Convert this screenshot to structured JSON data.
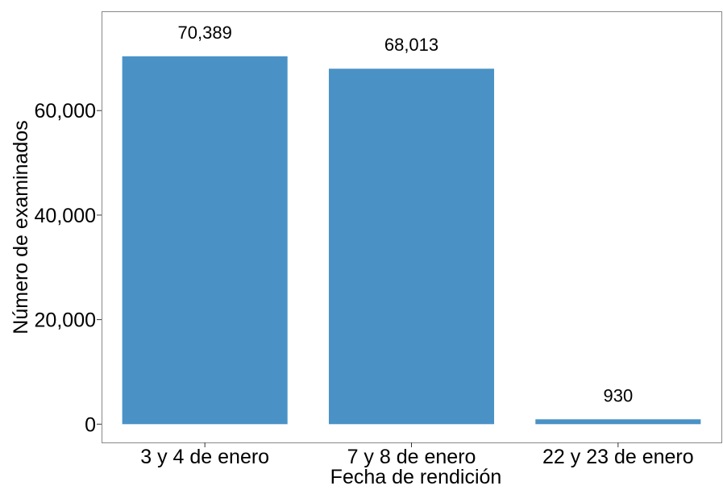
{
  "chart_data": {
    "type": "bar",
    "title": "",
    "xlabel": "Fecha de rendición",
    "ylabel": "Número de examinados",
    "categories": [
      "3 y 4 de enero",
      "7 y 8 de enero",
      "22 y 23 de enero"
    ],
    "values": [
      70389,
      68013,
      930
    ],
    "data_labels": [
      "70,389",
      "68,013",
      "930"
    ],
    "yticks": [
      0,
      20000,
      40000,
      60000
    ],
    "ytick_labels": [
      "0",
      "20,000",
      "40,000",
      "60,000"
    ],
    "ylim": [
      -3500,
      79000
    ],
    "grid": false,
    "legend": "none",
    "colors": {
      "bar": "#4A92C6",
      "panel_border": "#888888",
      "axis": "#333333"
    }
  }
}
